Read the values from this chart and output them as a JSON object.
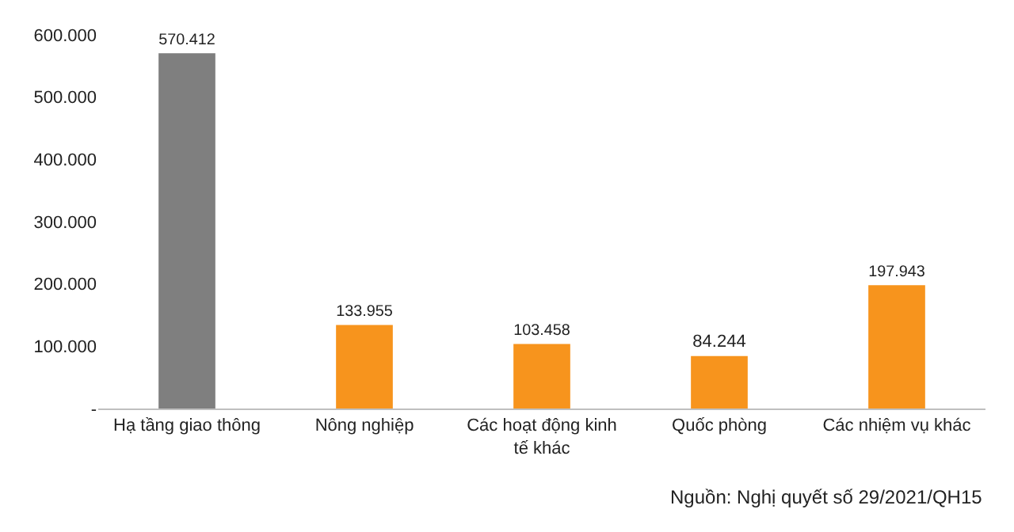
{
  "chart_data": {
    "type": "bar",
    "categories": [
      "Hạ tầng giao thông",
      "Nông nghiệp",
      "Các hoạt động kinh tế khác",
      "Quốc phòng",
      "Các nhiệm vụ khác"
    ],
    "values": [
      570412,
      133955,
      103458,
      84244,
      197943
    ],
    "colors": [
      "#7f7f7f",
      "#f7941d",
      "#f7941d",
      "#f7941d",
      "#f7941d"
    ],
    "value_labels": [
      "570.412",
      "133.955",
      "103.458",
      "84.244",
      "197.943"
    ],
    "ylim": [
      0,
      600000
    ],
    "yticks": [
      {
        "value": 0,
        "label": "-"
      },
      {
        "value": 100000,
        "label": "100.000"
      },
      {
        "value": 200000,
        "label": "200.000"
      },
      {
        "value": 300000,
        "label": "300.000"
      },
      {
        "value": 400000,
        "label": "400.000"
      },
      {
        "value": 500000,
        "label": "500.000"
      },
      {
        "value": 600000,
        "label": "600.000"
      }
    ],
    "grid": false,
    "annotations": [
      "Nguồn: Nghị quyết số 29/2021/QH15"
    ]
  }
}
